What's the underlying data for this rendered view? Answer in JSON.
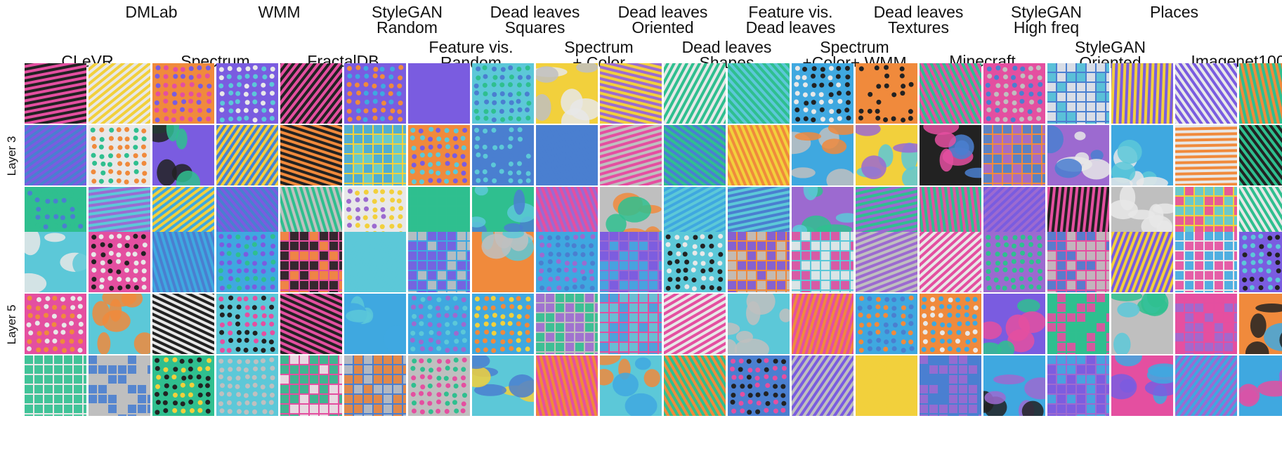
{
  "figure": {
    "top_labels": [
      {
        "text": "DMLab",
        "col": 1.5
      },
      {
        "text": "WMM",
        "col": 3.5
      },
      {
        "text": "StyleGAN\nRandom",
        "col": 5.5
      },
      {
        "text": "Dead leaves\nSquares",
        "col": 7.5
      },
      {
        "text": "Dead leaves\nOriented",
        "col": 9.5
      },
      {
        "text": "Feature vis.\nDead leaves",
        "col": 11.5
      },
      {
        "text": "Dead leaves\nTextures",
        "col": 13.5
      },
      {
        "text": "StyleGAN\nHigh freq",
        "col": 15.5
      },
      {
        "text": "Places",
        "col": 17.5
      }
    ],
    "bottom_labels": [
      {
        "text": "CLeVR",
        "col": 0.5
      },
      {
        "text": "Spectrum",
        "col": 2.5
      },
      {
        "text": "FractalDB",
        "col": 4.5
      },
      {
        "text": "Feature vis.\nRandom",
        "col": 6.5
      },
      {
        "text": "Spectrum\n+ Color",
        "col": 8.5
      },
      {
        "text": "Dead leaves\nShapes",
        "col": 10.5
      },
      {
        "text": "Spectrum\n+Color+ WMM",
        "col": 12.5
      },
      {
        "text": "Minecraft",
        "col": 14.5
      },
      {
        "text": "StyleGAN\nOriented",
        "col": 16.5
      },
      {
        "text": "Imagenet100",
        "col": 18.5
      }
    ],
    "layers": [
      {
        "label": "Layer 3",
        "rows": 3
      },
      {
        "label": "Layer 5",
        "rows": 3
      }
    ],
    "columns": 20
  },
  "palette": [
    "#f08a3c",
    "#3fa8e0",
    "#e44fa0",
    "#2fbf8f",
    "#f2d03c",
    "#7a5ce0",
    "#222222",
    "#bfbfbf",
    "#5cc8d8",
    "#9c6ad0",
    "#e8e8e8",
    "#4a7fd0"
  ]
}
